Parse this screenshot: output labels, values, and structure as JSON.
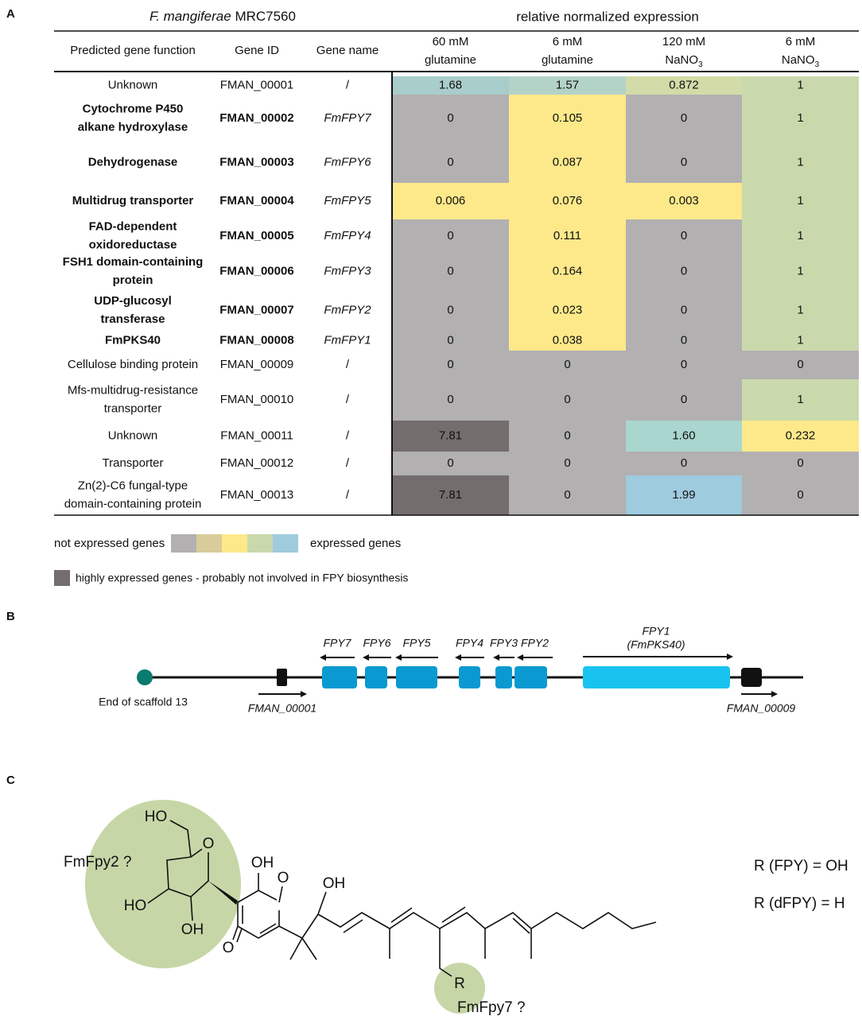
{
  "panels": {
    "a": "A",
    "b": "B",
    "c": "C"
  },
  "table": {
    "title_species": "F. mangiferae",
    "title_strain": "MRC7560",
    "group_header": "relative normalized expression",
    "headers": [
      "Predicted gene function",
      "Gene ID",
      "Gene name"
    ],
    "conditions": [
      {
        "line1": "60 mM",
        "line2": "glutamine"
      },
      {
        "line1": "6 mM",
        "line2": "glutamine"
      },
      {
        "line1": "120 mM",
        "line2": "NaNO",
        "sub": "3"
      },
      {
        "line1": "6 mM",
        "line2": "NaNO",
        "sub": "3"
      }
    ],
    "rows": [
      {
        "function": [
          "Unknown"
        ],
        "id": "FMAN_00001",
        "name": "/",
        "bold": false,
        "values": [
          "1.68",
          "1.57",
          "0.872",
          "1"
        ],
        "colors": [
          "#a9cdcb",
          "#b4d3c8",
          "#d3dba8",
          "#cad9ac"
        ]
      },
      {
        "function": [
          "Cytochrome P450",
          "alkane hydroxylase"
        ],
        "id": "FMAN_00002",
        "name": "FmFPY7",
        "bold": true,
        "values": [
          "0",
          "0.105",
          "0",
          "1"
        ],
        "colors": [
          "#b2b0b1",
          "#fde98a",
          "#b2b0b1",
          "#cad9ac"
        ]
      },
      {
        "function": [
          "Dehydrogenase"
        ],
        "id": "FMAN_00003",
        "name": "FmFPY6",
        "bold": true,
        "values": [
          "0",
          "0.087",
          "0",
          "1"
        ],
        "colors": [
          "#b2b0b1",
          "#fde98a",
          "#b2b0b1",
          "#cad9ac"
        ]
      },
      {
        "function": [
          "Multidrug transporter"
        ],
        "id": "FMAN_00004",
        "name": "FmFPY5",
        "bold": true,
        "values": [
          "0.006",
          "0.076",
          "0.003",
          "1"
        ],
        "colors": [
          "#fde98a",
          "#fde98a",
          "#fde98a",
          "#cad9ac"
        ]
      },
      {
        "function": [
          "FAD-dependent",
          "oxidoreductase"
        ],
        "id": "FMAN_00005",
        "name": "FmFPY4",
        "bold": true,
        "values": [
          "0",
          "0.111",
          "0",
          "1"
        ],
        "colors": [
          "#b2b0b1",
          "#fde98a",
          "#b2b0b1",
          "#cad9ac"
        ]
      },
      {
        "function": [
          "FSH1 domain-containing",
          "protein"
        ],
        "id": "FMAN_00006",
        "name": "FmFPY3",
        "bold": true,
        "values": [
          "0",
          "0.164",
          "0",
          "1"
        ],
        "colors": [
          "#b2b0b1",
          "#fde98a",
          "#b2b0b1",
          "#cad9ac"
        ]
      },
      {
        "function": [
          "UDP-glucosyl",
          "transferase"
        ],
        "id": "FMAN_00007",
        "name": "FmFPY2",
        "bold": true,
        "values": [
          "0",
          "0.023",
          "0",
          "1"
        ],
        "colors": [
          "#b2b0b1",
          "#fde98a",
          "#b2b0b1",
          "#cad9ac"
        ]
      },
      {
        "function": [
          "FmPKS40"
        ],
        "id": "FMAN_00008",
        "name": "FmFPY1",
        "bold": true,
        "values": [
          "0",
          "0.038",
          "0",
          "1"
        ],
        "colors": [
          "#b2b0b1",
          "#fde98a",
          "#b2b0b1",
          "#cad9ac"
        ]
      },
      {
        "function": [
          "Cellulose binding protein"
        ],
        "id": "FMAN_00009",
        "name": "/",
        "bold": false,
        "values": [
          "0",
          "0",
          "0",
          "0"
        ],
        "colors": [
          "#b2b0b1",
          "#b2b0b1",
          "#b2b0b1",
          "#b2b0b1"
        ]
      },
      {
        "function": [
          "Mfs-multidrug-resistance",
          "transporter"
        ],
        "id": "FMAN_00010",
        "name": "/",
        "bold": false,
        "values": [
          "0",
          "0",
          "0",
          "1"
        ],
        "colors": [
          "#b2b0b1",
          "#b2b0b1",
          "#b2b0b1",
          "#cad9ac"
        ]
      },
      {
        "function": [
          "Unknown"
        ],
        "id": "FMAN_00011",
        "name": "/",
        "bold": false,
        "values": [
          "7.81",
          "0",
          "1.60",
          "0.232"
        ],
        "colors": [
          "#746d6d",
          "#b2b0b1",
          "#a9d6cf",
          "#fde98a"
        ]
      },
      {
        "function": [
          "Transporter"
        ],
        "id": "FMAN_00012",
        "name": "/",
        "bold": false,
        "values": [
          "0",
          "0",
          "0",
          "0"
        ],
        "colors": [
          "#b2b0b1",
          "#b2b0b1",
          "#b2b0b1",
          "#b2b0b1"
        ]
      },
      {
        "function": [
          "Zn(2)-C6 fungal-type",
          "domain-containing protein"
        ],
        "id": "FMAN_00013",
        "name": "/",
        "bold": false,
        "values": [
          "7.81",
          "0",
          "1.99",
          "0"
        ],
        "colors": [
          "#746d6d",
          "#b2b0b1",
          "#9fcbdf",
          "#b2b0b1"
        ]
      }
    ]
  },
  "legend": {
    "low": "not expressed genes",
    "high": "expressed genes",
    "scale_colors": [
      "#b2b0b1",
      "#d9cc9a",
      "#fde98a",
      "#cad9ac",
      "#9fcbdf"
    ],
    "dark_color": "#746d6d",
    "dark": "highly expressed genes - probably not involved in FPY biosynthesis"
  },
  "gene_map": {
    "scaffold_label": "End of scaffold 13",
    "genes": [
      "FPY7",
      "FPY6",
      "FPY5",
      "FPY4",
      "FPY3",
      "FPY2"
    ],
    "fpy1": [
      "FPY1",
      "(FmPKS40)"
    ],
    "flank": [
      "FMAN_00001",
      "FMAN_00009"
    ]
  },
  "structure": {
    "labels": [
      "HO",
      "O",
      "HO",
      "OH",
      "OH",
      "O",
      "O",
      "OH",
      "R"
    ],
    "enzymes": [
      "FmFpy2 ?",
      "FmFpy7 ?"
    ],
    "r_defs": [
      "R (FPY) = OH",
      "R (dFPY) = H"
    ]
  }
}
